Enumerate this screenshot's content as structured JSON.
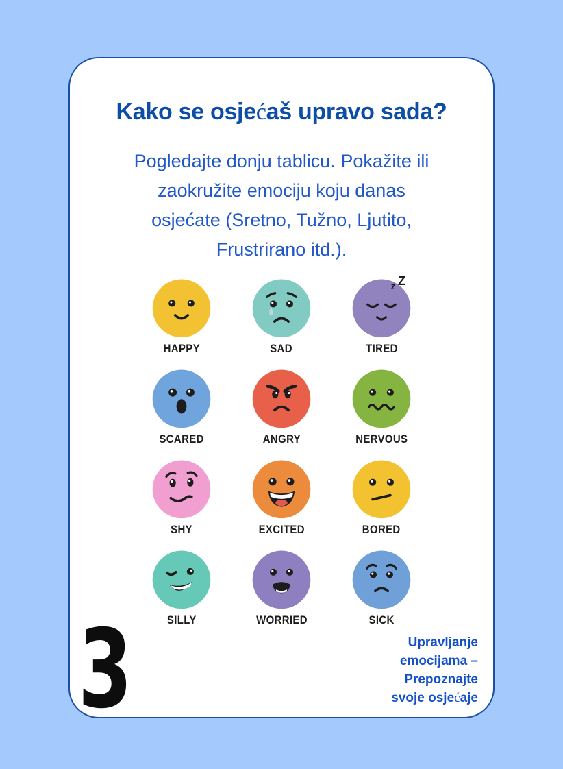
{
  "page": {
    "background_color": "#A4C9FD",
    "card_border_color": "#1B4FA5",
    "page_number": "3"
  },
  "header": {
    "title": "Kako se osjećaš upravo sada?",
    "title_color": "#0C4DA6"
  },
  "intro": {
    "text": "Pogledajte donju tablicu. Pokažite ili\nzaokružite emociju koju danas\nosjećate (Sretno, Tužno, Ljutito,\nFrustrirano itd.).",
    "color": "#2057C9"
  },
  "emotions": {
    "snore": {
      "small": "z",
      "large": "Z"
    },
    "items": [
      {
        "label": "HAPPY",
        "color": "#F2C233",
        "face": "happy"
      },
      {
        "label": "SAD",
        "color": "#82CBC2",
        "face": "sad"
      },
      {
        "label": "TIRED",
        "color": "#9184BE",
        "face": "tired"
      },
      {
        "label": "SCARED",
        "color": "#6FA5DC",
        "face": "scared"
      },
      {
        "label": "ANGRY",
        "color": "#E8604A",
        "face": "angry"
      },
      {
        "label": "NERVOUS",
        "color": "#85B440",
        "face": "nervous"
      },
      {
        "label": "SHY",
        "color": "#F09FD0",
        "face": "shy"
      },
      {
        "label": "EXCITED",
        "color": "#EC8B3C",
        "face": "excited"
      },
      {
        "label": "BORED",
        "color": "#F2C230",
        "face": "bored"
      },
      {
        "label": "SILLY",
        "color": "#66C9B7",
        "face": "silly"
      },
      {
        "label": "WORRIED",
        "color": "#8E80C0",
        "face": "worried"
      },
      {
        "label": "SICK",
        "color": "#6FA0D8",
        "face": "sick"
      }
    ]
  },
  "footer": {
    "lines": [
      "Upravljanje",
      "emocijama –",
      "Prepoznajte",
      "svoje osjećaje"
    ],
    "color": "#1450C8"
  }
}
